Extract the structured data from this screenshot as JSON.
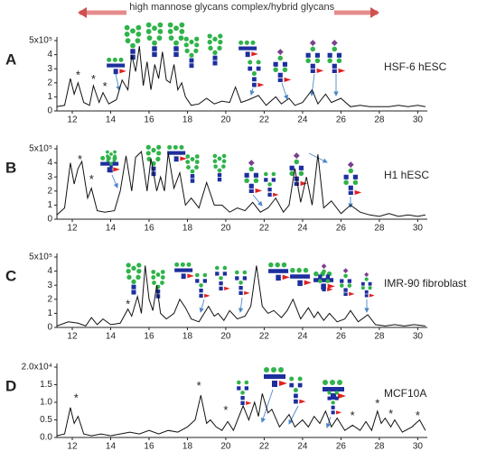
{
  "chart_data": [
    {
      "type": "line",
      "label": "A",
      "annotation": "HSF-6 hESC",
      "color": "#111111",
      "header": [
        "high mannose glycans",
        "complex/hybrid glycans"
      ],
      "xlim": [
        11.2,
        30.5
      ],
      "xticks": [
        12,
        14,
        16,
        18,
        20,
        22,
        24,
        26,
        28,
        30
      ],
      "ylim": [
        0,
        5
      ],
      "yticks": [
        0,
        1,
        2,
        3,
        4,
        {
          "value": 5,
          "label": "5x10⁵"
        }
      ],
      "x": [
        11.2,
        11.6,
        11.9,
        12.1,
        12.3,
        12.6,
        12.9,
        13.1,
        13.4,
        13.6,
        13.9,
        14.3,
        14.6,
        14.9,
        15.1,
        15.3,
        15.5,
        15.7,
        15.9,
        16.1,
        16.3,
        16.5,
        16.7,
        16.9,
        17.1,
        17.3,
        17.5,
        17.7,
        17.9,
        18.2,
        18.6,
        19.0,
        19.4,
        19.8,
        20.2,
        20.5,
        20.8,
        21.2,
        21.7,
        22.1,
        22.6,
        22.9,
        23.3,
        23.6,
        24.0,
        24.5,
        24.8,
        25.2,
        25.5,
        26.0,
        26.5,
        27.0,
        27.5,
        28.0,
        28.5,
        29.0,
        29.5,
        30.0,
        30.4
      ],
      "y": [
        0.3,
        0.4,
        2.3,
        1.2,
        2.0,
        0.6,
        0.4,
        1.8,
        0.6,
        1.3,
        0.5,
        0.8,
        2.2,
        1.5,
        4.0,
        2.8,
        4.6,
        1.8,
        3.5,
        1.5,
        3.3,
        2.3,
        4.2,
        2.2,
        2.0,
        3.3,
        1.5,
        2.0,
        1.0,
        0.4,
        0.5,
        0.9,
        0.5,
        0.7,
        0.6,
        1.7,
        0.6,
        0.8,
        1.1,
        0.4,
        1.0,
        0.5,
        0.9,
        0.4,
        0.6,
        1.5,
        0.5,
        1.2,
        0.6,
        0.9,
        0.3,
        0.4,
        0.3,
        0.3,
        0.3,
        0.4,
        0.3,
        0.4,
        0.3
      ],
      "annotations": [
        {
          "text": "*",
          "x": 12.3,
          "y": 2.5
        },
        {
          "text": "*",
          "x": 13.1,
          "y": 2.2
        },
        {
          "text": "*",
          "x": 13.7,
          "y": 1.7
        }
      ]
    },
    {
      "type": "line",
      "label": "B",
      "annotation": "H1 hESC",
      "color": "#111111",
      "xlim": [
        11.2,
        30.5
      ],
      "xticks": [
        12,
        14,
        16,
        18,
        20,
        22,
        24,
        26,
        28,
        30
      ],
      "ylim": [
        0,
        5
      ],
      "yticks": [
        0,
        1,
        2,
        3,
        4,
        {
          "value": 5,
          "label": "5x10⁵"
        }
      ],
      "x": [
        11.2,
        11.6,
        11.9,
        12.1,
        12.3,
        12.5,
        12.8,
        13.0,
        13.3,
        13.7,
        14.2,
        14.5,
        14.8,
        15.1,
        15.3,
        15.6,
        15.9,
        16.1,
        16.4,
        16.6,
        16.8,
        17.0,
        17.3,
        17.6,
        17.9,
        18.2,
        18.6,
        19.0,
        19.4,
        19.8,
        20.2,
        20.6,
        21.0,
        21.4,
        21.8,
        22.2,
        22.6,
        23.0,
        23.3,
        23.6,
        23.9,
        24.2,
        24.5,
        24.8,
        25.1,
        25.5,
        26.0,
        26.5,
        27.0,
        27.5,
        28.0,
        28.5,
        29.0,
        29.5,
        30.0,
        30.4
      ],
      "y": [
        0.3,
        0.8,
        4.0,
        2.5,
        3.6,
        4.1,
        1.5,
        2.2,
        0.6,
        0.5,
        0.6,
        2.0,
        4.5,
        2.0,
        4.4,
        4.8,
        2.0,
        4.3,
        2.0,
        3.0,
        2.0,
        4.7,
        2.2,
        3.3,
        1.0,
        1.5,
        0.8,
        2.6,
        1.0,
        1.0,
        0.5,
        0.8,
        0.6,
        1.2,
        0.5,
        0.8,
        1.5,
        0.5,
        1.0,
        3.6,
        1.2,
        3.0,
        1.0,
        4.6,
        0.8,
        1.3,
        0.4,
        1.0,
        0.5,
        0.3,
        0.2,
        0.4,
        0.2,
        0.3,
        0.2,
        0.3
      ],
      "annotations": [
        {
          "text": "*",
          "x": 12.4,
          "y": 4.2
        },
        {
          "text": "*",
          "x": 13.0,
          "y": 2.8
        }
      ]
    },
    {
      "type": "line",
      "label": "C",
      "annotation": "IMR-90 fibroblast",
      "color": "#111111",
      "xlim": [
        11.2,
        30.5
      ],
      "xticks": [
        12,
        14,
        16,
        18,
        20,
        22,
        24,
        26,
        28,
        30
      ],
      "ylim": [
        0,
        5
      ],
      "yticks": [
        0,
        1,
        2,
        3,
        4,
        {
          "value": 5,
          "label": "5x10⁵"
        }
      ],
      "x": [
        11.2,
        11.8,
        12.3,
        12.7,
        13.0,
        13.3,
        13.6,
        14.0,
        14.5,
        14.9,
        15.1,
        15.4,
        15.6,
        15.8,
        16.0,
        16.2,
        16.4,
        16.6,
        16.9,
        17.3,
        17.6,
        17.9,
        18.2,
        18.6,
        19.1,
        19.4,
        19.6,
        19.9,
        20.2,
        20.6,
        21.0,
        21.3,
        21.6,
        21.9,
        22.2,
        22.5,
        22.9,
        23.2,
        23.5,
        23.9,
        24.3,
        24.6,
        24.8,
        25.1,
        25.4,
        25.8,
        26.2,
        26.5,
        26.9,
        27.4,
        27.8,
        28.3,
        28.8,
        29.3,
        29.8,
        30.4
      ],
      "y": [
        0.1,
        0.4,
        0.3,
        0.1,
        0.7,
        0.2,
        0.6,
        0.2,
        0.3,
        1.3,
        0.8,
        2.2,
        1.0,
        4.4,
        2.0,
        1.2,
        3.0,
        1.0,
        0.6,
        1.0,
        2.0,
        1.4,
        0.6,
        0.4,
        1.5,
        0.8,
        1.0,
        0.5,
        1.2,
        0.6,
        0.8,
        1.5,
        4.4,
        1.5,
        1.0,
        1.2,
        0.7,
        1.2,
        2.0,
        0.6,
        1.4,
        0.7,
        1.1,
        0.5,
        1.0,
        0.4,
        0.6,
        1.2,
        0.4,
        0.9,
        0.2,
        0.1,
        0.2,
        0.1,
        0.2,
        0.1
      ],
      "annotations": [
        {
          "text": "*",
          "x": 14.9,
          "y": 1.6
        }
      ]
    },
    {
      "type": "line",
      "label": "D",
      "annotation": "MCF10A",
      "color": "#111111",
      "xlim": [
        11.2,
        30.5
      ],
      "xticks": [
        12,
        14,
        16,
        18,
        20,
        22,
        24,
        26,
        28,
        30
      ],
      "ylim": [
        0,
        2
      ],
      "yticks": [
        {
          "value": 0,
          "label": "0.0"
        },
        {
          "value": 0.5,
          "label": "0.5"
        },
        {
          "value": 1,
          "label": "1.0"
        },
        {
          "value": 1.5,
          "label": "1.5"
        },
        {
          "value": 2,
          "label": "2.0x10⁴"
        }
      ],
      "x": [
        11.2,
        11.6,
        11.9,
        12.1,
        12.3,
        12.6,
        13.0,
        13.5,
        14.0,
        14.5,
        15.0,
        15.5,
        16.0,
        16.5,
        17.0,
        17.5,
        18.0,
        18.4,
        18.7,
        19.0,
        19.2,
        19.5,
        19.8,
        20.1,
        20.4,
        20.9,
        21.2,
        21.5,
        21.7,
        21.9,
        22.2,
        22.4,
        22.8,
        23.3,
        23.6,
        24.0,
        24.3,
        24.6,
        24.9,
        25.2,
        25.5,
        25.8,
        26.2,
        26.6,
        27.0,
        27.3,
        27.6,
        27.9,
        28.1,
        28.3,
        28.6,
        28.8,
        29.2,
        29.7,
        30.1,
        30.4
      ],
      "y": [
        0.05,
        0.1,
        0.85,
        0.4,
        0.6,
        0.1,
        0.05,
        0.1,
        0.05,
        0.1,
        0.15,
        0.1,
        0.2,
        0.1,
        0.2,
        0.15,
        0.3,
        0.5,
        1.2,
        0.4,
        0.5,
        0.3,
        0.2,
        0.45,
        0.2,
        0.9,
        0.5,
        1.0,
        0.6,
        1.25,
        0.7,
        0.8,
        0.3,
        0.65,
        0.3,
        0.5,
        0.3,
        0.6,
        0.4,
        0.75,
        0.3,
        0.55,
        0.2,
        0.35,
        0.2,
        0.45,
        0.2,
        0.75,
        0.4,
        0.55,
        0.3,
        0.5,
        0.15,
        0.3,
        0.5,
        0.2
      ],
      "annotations": [
        {
          "text": "*",
          "x": 12.2,
          "y": 1.1
        },
        {
          "text": "*",
          "x": 18.6,
          "y": 1.45
        },
        {
          "text": "*",
          "x": 20.0,
          "y": 0.75
        },
        {
          "text": "*",
          "x": 26.6,
          "y": 0.6
        },
        {
          "text": "*",
          "x": 27.9,
          "y": 0.95
        },
        {
          "text": "*",
          "x": 28.6,
          "y": 0.65
        },
        {
          "text": "*",
          "x": 30.0,
          "y": 0.6
        }
      ]
    }
  ]
}
